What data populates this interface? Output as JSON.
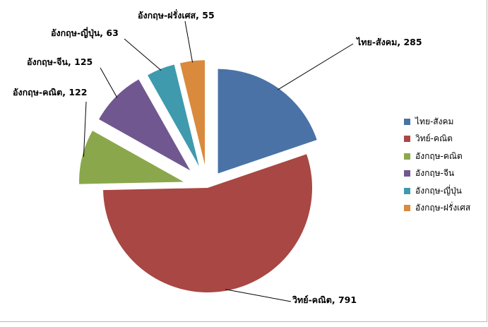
{
  "chart_data": {
    "type": "pie",
    "title": "",
    "categories": [
      "ไทย-สังคม",
      "วิทย์-คณิต",
      "อังกฤษ-คณิต",
      "อังกฤษ-จีน",
      "อังกฤษ-ญี่ปุ่น",
      "อังกฤษ-ฝรั่งเศส"
    ],
    "values": [
      285,
      791,
      122,
      125,
      63,
      55
    ],
    "data_labels": [
      "ไทย-สังคม, 285",
      "วิทย์-คณิต, 791",
      "อังกฤษ-คณิต, 122",
      "อังกฤษ-จีน, 125",
      "อังกฤษ-ญี่ปุ่น, 63",
      "อังกฤษ-ฝรั่งเศส, 55"
    ],
    "colors": [
      "#4a72a6",
      "#a84743",
      "#8aa84b",
      "#71578f",
      "#3f9aae",
      "#d98a3c"
    ],
    "exploded": true,
    "legend": "right"
  }
}
